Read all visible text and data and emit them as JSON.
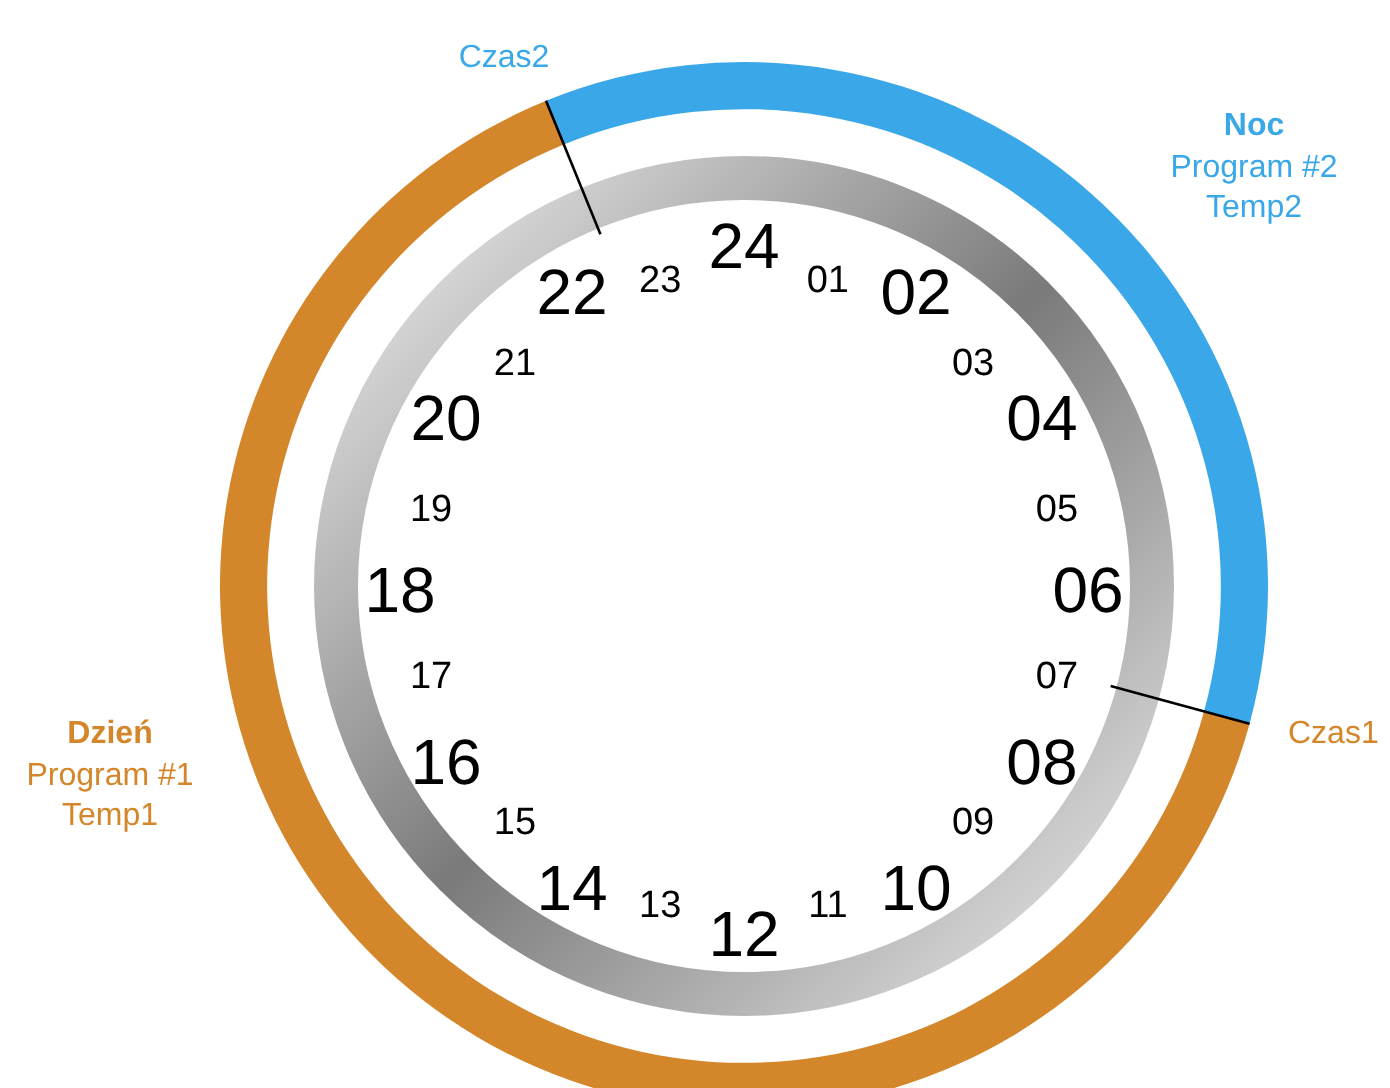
{
  "chart_data": {
    "type": "donut",
    "categories": [
      "Noc",
      "Dzień"
    ],
    "values": [
      35.4,
      64.6
    ],
    "colors": [
      "#3aa8e8",
      "#d4862a"
    ],
    "legend": false,
    "annotations": [
      "Program #2",
      "Temp2",
      "Program #1",
      "Temp1",
      "Czas1",
      "Czas2",
      "24",
      "01",
      "02",
      "03",
      "04",
      "05",
      "06",
      "07",
      "08",
      "09",
      "10",
      "11",
      "12",
      "13",
      "14",
      "15",
      "16",
      "17",
      "18",
      "19",
      "20",
      "21",
      "22",
      "23"
    ]
  }
}
